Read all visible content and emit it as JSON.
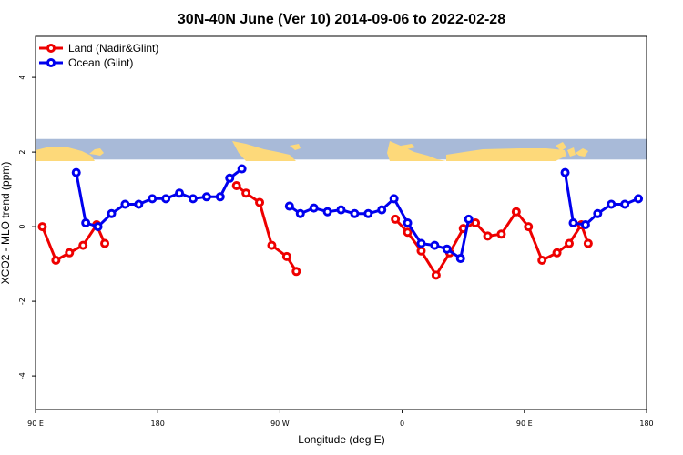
{
  "chart_data": {
    "type": "line",
    "title": "30N-40N June (Ver 10)   2014-09-06 to 2022-02-28",
    "xlabel": "Longitude (deg E)",
    "ylabel": "XCO2 - MLO trend (ppm)",
    "xlim": [
      90,
      540
    ],
    "ylim": [
      -4.9,
      5.1
    ],
    "x_ticks": [
      {
        "value": 90,
        "label": "90 E"
      },
      {
        "value": 180,
        "label": "180"
      },
      {
        "value": 270,
        "label": "90 W"
      },
      {
        "value": 360,
        "label": "0"
      },
      {
        "value": 450,
        "label": "90 E"
      },
      {
        "value": 540,
        "label": "180"
      }
    ],
    "y_ticks": [
      {
        "value": -4,
        "label": "-4"
      },
      {
        "value": -2,
        "label": "-2"
      },
      {
        "value": 0,
        "label": "0"
      },
      {
        "value": 2,
        "label": "2"
      },
      {
        "value": 4,
        "label": "4"
      }
    ],
    "legend": {
      "placement": "top-left"
    },
    "map_strip": {
      "ymin": 1.8,
      "ymax": 2.35,
      "ocean_color": "#a8bad8",
      "land_color": "#fdd97a"
    },
    "series": [
      {
        "name": "Land (Nadir&Glint)",
        "color": "#ee0000",
        "segments": [
          [
            [
              95,
              0
            ],
            [
              105,
              -0.9
            ],
            [
              115,
              -0.7
            ],
            [
              125,
              -0.5
            ],
            [
              135,
              0.05
            ],
            [
              141,
              -0.45
            ]
          ],
          [
            [
              238,
              1.1
            ],
            [
              245,
              0.9
            ],
            [
              255,
              0.65
            ],
            [
              264,
              -0.5
            ],
            [
              275,
              -0.8
            ],
            [
              282,
              -1.2
            ]
          ],
          [
            [
              355,
              0.2
            ],
            [
              364,
              -0.15
            ],
            [
              374,
              -0.65
            ],
            [
              385,
              -1.3
            ],
            [
              395,
              -0.7
            ],
            [
              405,
              -0.05
            ],
            [
              414,
              0.1
            ],
            [
              423,
              -0.25
            ],
            [
              433,
              -0.2
            ],
            [
              444,
              0.4
            ],
            [
              453,
              0
            ],
            [
              463,
              -0.9
            ],
            [
              474,
              -0.7
            ],
            [
              483,
              -0.45
            ],
            [
              492,
              0.05
            ],
            [
              497,
              -0.45
            ]
          ]
        ]
      },
      {
        "name": "Ocean (Glint)",
        "color": "#0000ee",
        "segments": [
          [
            [
              120,
              1.45
            ],
            [
              127,
              0.1
            ],
            [
              136,
              0
            ],
            [
              146,
              0.35
            ],
            [
              156,
              0.6
            ],
            [
              166,
              0.6
            ],
            [
              176,
              0.75
            ],
            [
              186,
              0.75
            ],
            [
              196,
              0.9
            ],
            [
              206,
              0.75
            ],
            [
              216,
              0.8
            ],
            [
              226,
              0.8
            ],
            [
              233,
              1.3
            ],
            [
              242,
              1.55
            ]
          ],
          [
            [
              277,
              0.55
            ],
            [
              285,
              0.35
            ],
            [
              295,
              0.5
            ],
            [
              305,
              0.4
            ],
            [
              315,
              0.45
            ],
            [
              325,
              0.35
            ],
            [
              335,
              0.35
            ],
            [
              345,
              0.45
            ],
            [
              354,
              0.75
            ],
            [
              364,
              0.1
            ],
            [
              374,
              -0.45
            ],
            [
              384,
              -0.5
            ],
            [
              393,
              -0.6
            ],
            [
              403,
              -0.85
            ],
            [
              409,
              0.2
            ]
          ],
          [
            [
              480,
              1.45
            ],
            [
              486,
              0.1
            ],
            [
              495,
              0.05
            ],
            [
              504,
              0.35
            ],
            [
              514,
              0.6
            ],
            [
              524,
              0.6
            ],
            [
              534,
              0.75
            ]
          ]
        ]
      }
    ]
  }
}
